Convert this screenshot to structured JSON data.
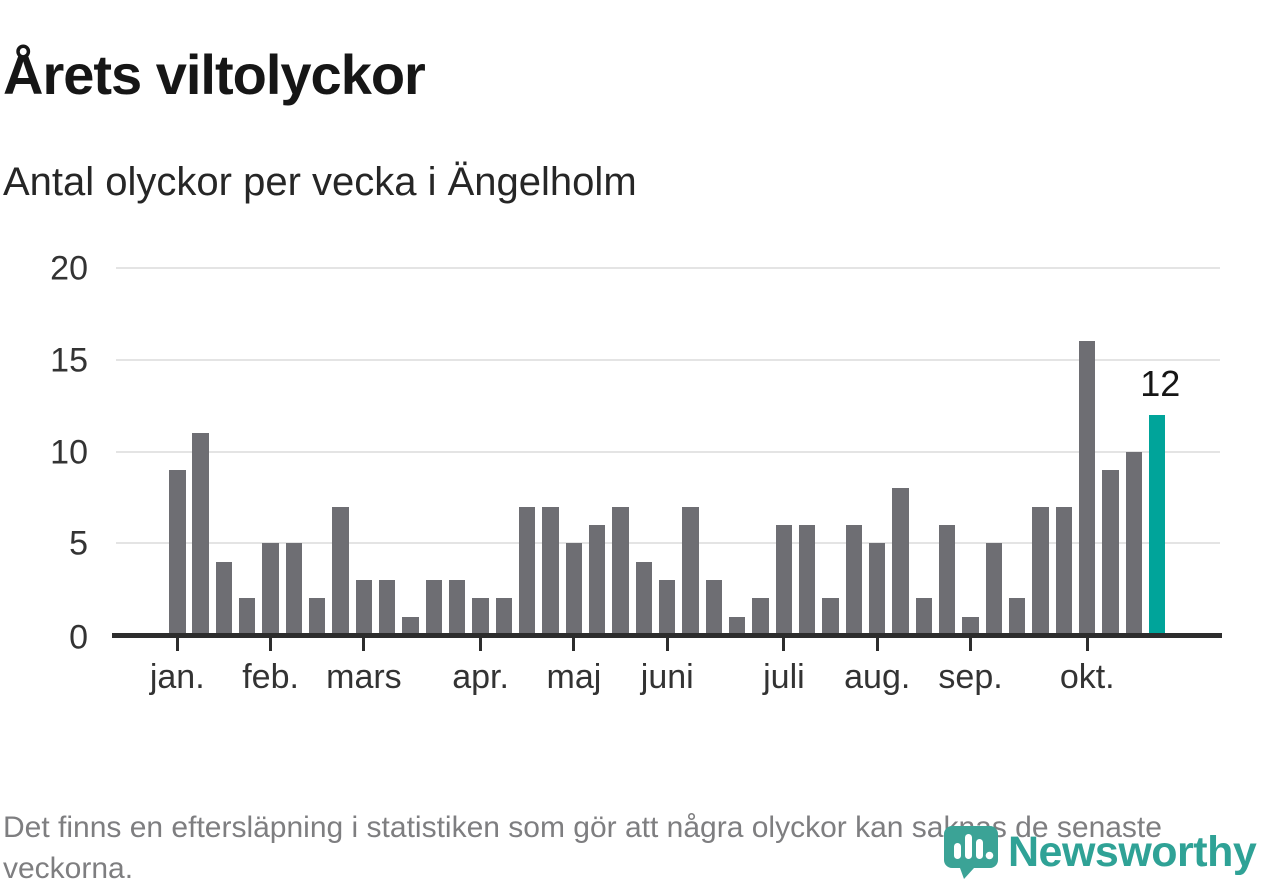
{
  "header": {
    "title": "Årets viltolyckor",
    "subtitle": "Antal olyckor per vecka i Ängelholm"
  },
  "chart_data": {
    "type": "bar",
    "title": "Årets viltolyckor",
    "subtitle": "Antal olyckor per vecka i Ängelholm",
    "values": [
      9,
      11,
      4,
      2,
      5,
      5,
      2,
      7,
      3,
      3,
      1,
      3,
      3,
      2,
      2,
      7,
      7,
      5,
      6,
      7,
      4,
      3,
      7,
      3,
      1,
      2,
      6,
      6,
      2,
      6,
      5,
      8,
      2,
      6,
      1,
      5,
      2,
      7,
      7,
      16,
      9,
      10,
      12
    ],
    "highlight_index": 42,
    "annotation": {
      "text": "12",
      "bar_index": 42
    },
    "month_ticks": [
      {
        "label": "jan.",
        "bar_index": 0
      },
      {
        "label": "feb.",
        "bar_index": 4
      },
      {
        "label": "mars",
        "bar_index": 8
      },
      {
        "label": "apr.",
        "bar_index": 13
      },
      {
        "label": "maj",
        "bar_index": 17
      },
      {
        "label": "juni",
        "bar_index": 21
      },
      {
        "label": "juli",
        "bar_index": 26
      },
      {
        "label": "aug.",
        "bar_index": 30
      },
      {
        "label": "sep.",
        "bar_index": 34
      },
      {
        "label": "okt.",
        "bar_index": 39
      }
    ],
    "yticks": [
      0,
      5,
      10,
      15,
      20
    ],
    "ylim": [
      0,
      20
    ],
    "grid": "horizontal",
    "legend": "none",
    "colors": {
      "bar": "#6e6e73",
      "highlight": "#00a49a"
    }
  },
  "footer": {
    "note": "Det finns en eftersläpning i statistiken som gör att några olyckor kan saknas de senaste veckorna."
  },
  "logo": {
    "text": "Newsworthy",
    "color": "#2fa296"
  }
}
